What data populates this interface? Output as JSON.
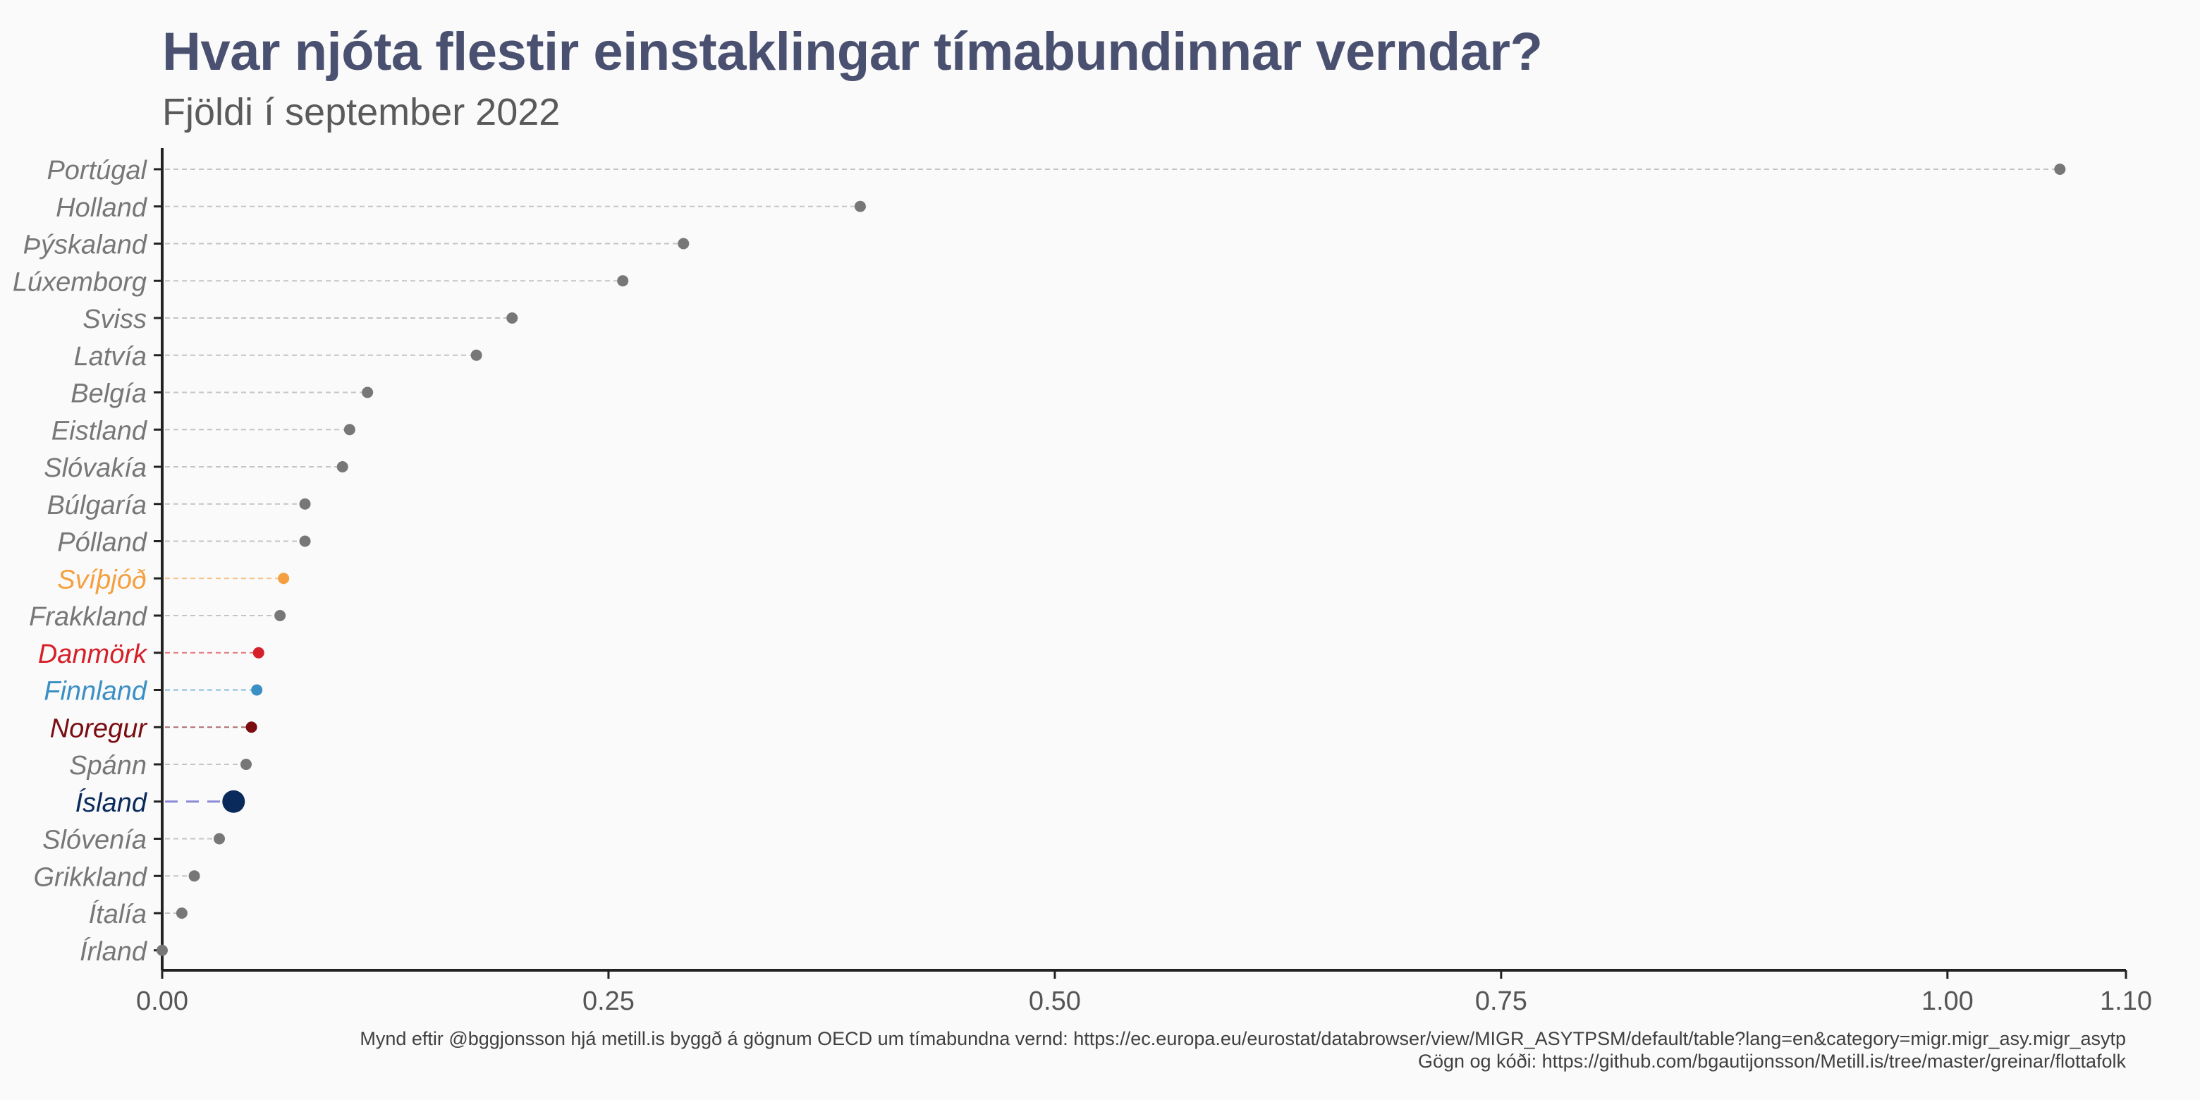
{
  "title": "Hvar njóta flestir einstaklingar tímabundinnar verndar?",
  "subtitle": "Fjöldi í september 2022",
  "caption_line1": "Mynd eftir @bggjonsson hjá metill.is byggð á gögnum OECD um tímabundna vernd: https://ec.europa.eu/eurostat/databrowser/view/MIGR_ASYTPSM/default/table?lang=en&category=migr.migr_asy.migr_asytp",
  "caption_line2": "Gögn og kóði: https://github.com/bgautijonsson/Metill.is/tree/master/greinar/flottafolk",
  "colors": {
    "default": "#777777",
    "default_line": "#c4c4c4",
    "Svíþjóð": "#f4a040",
    "Danmörk": "#d5202a",
    "Finnland": "#3a8fc4",
    "Noregur": "#7a0d12",
    "Ísland": "#0a2a5c",
    "Ísland_line": "#8a8ad8",
    "axis": "#222222",
    "tick_label": "#555555"
  },
  "chart_data": {
    "type": "lollipop",
    "orientation": "horizontal",
    "title": "Hvar njóta flestir einstaklingar tímabundinnar verndar?",
    "subtitle": "Fjöldi í september 2022",
    "xlabel": "",
    "ylabel": "",
    "xlim": [
      0,
      1.1
    ],
    "xticks": [
      0,
      0.25,
      0.5,
      0.75,
      1.0,
      1.1
    ],
    "xtick_labels": [
      "0.00",
      "0.25",
      "0.50",
      "0.75",
      "1.00",
      "1.10"
    ],
    "grid": false,
    "categories": [
      "Portúgal",
      "Holland",
      "Þýskaland",
      "Lúxemborg",
      "Sviss",
      "Latvía",
      "Belgía",
      "Eistland",
      "Slóvakía",
      "Búlgaría",
      "Pólland",
      "Svíþjóð",
      "Frakkland",
      "Danmörk",
      "Finnland",
      "Noregur",
      "Spánn",
      "Ísland",
      "Slóvenía",
      "Grikkland",
      "Ítalía",
      "Írland"
    ],
    "values": [
      1.063,
      0.391,
      0.292,
      0.258,
      0.196,
      0.176,
      0.115,
      0.105,
      0.101,
      0.08,
      0.08,
      0.068,
      0.066,
      0.054,
      0.053,
      0.05,
      0.047,
      0.04,
      0.032,
      0.018,
      0.011,
      0.0
    ],
    "highlighted": [
      "Svíþjóð",
      "Danmörk",
      "Finnland",
      "Noregur",
      "Ísland"
    ],
    "emphasized": "Ísland"
  }
}
